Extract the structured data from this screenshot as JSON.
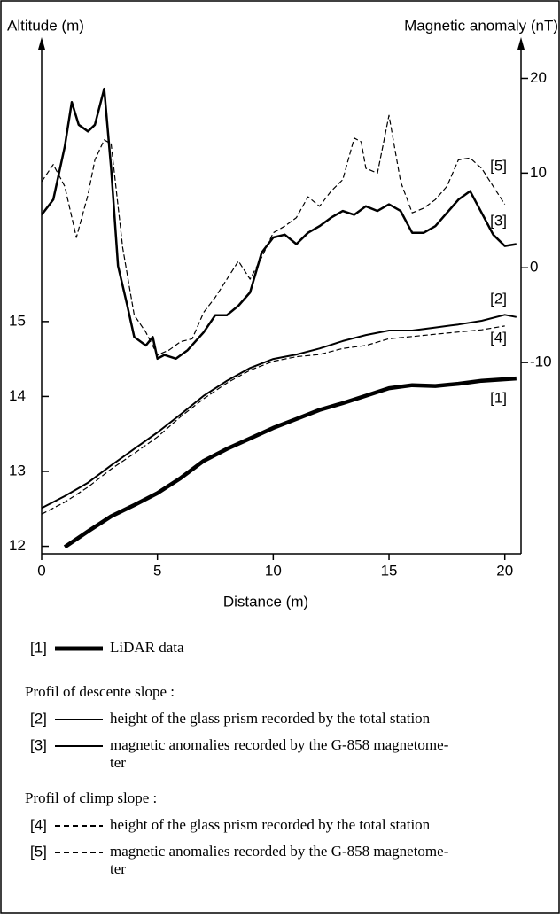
{
  "chart_data": {
    "type": "line",
    "ylabel": "Altitude (m)",
    "y2label": "Magnetic anomaly (nT)",
    "xlabel": "Distance (m)",
    "xlim": [
      0,
      20.7
    ],
    "xticks": [
      0,
      5,
      10,
      15,
      20
    ],
    "ylim": [
      11.9,
      18.7
    ],
    "yticks": [
      12,
      13,
      14,
      15
    ],
    "y2lim": [
      -30.2,
      23.6
    ],
    "y2ticks": [
      -10,
      0,
      10,
      20
    ],
    "series": [
      {
        "label": "[1]",
        "name": "LiDAR data",
        "color": "#000000",
        "width": 4.5,
        "dashed": false,
        "x": [
          1,
          2,
          3,
          4,
          5,
          6,
          7,
          8,
          9,
          10,
          11,
          12,
          13,
          14,
          15,
          16,
          17,
          18,
          19,
          20.5
        ],
        "values": [
          11.99,
          12.2,
          12.4,
          12.55,
          12.71,
          12.91,
          13.14,
          13.3,
          13.44,
          13.58,
          13.7,
          13.82,
          13.91,
          14.01,
          14.11,
          14.15,
          14.14,
          14.17,
          14.21,
          14.24
        ]
      },
      {
        "label": "[2]",
        "name": "height of the glass prism recorded by the total station",
        "color": "#000000",
        "width": 2,
        "dashed": false,
        "x": [
          0,
          1,
          2,
          3,
          4,
          5,
          6,
          7,
          8,
          9,
          10,
          11,
          12,
          13,
          14,
          15,
          16,
          17,
          18,
          19,
          20,
          20.5
        ],
        "values": [
          12.51,
          12.67,
          12.85,
          13.08,
          13.3,
          13.52,
          13.76,
          14.01,
          14.21,
          14.38,
          14.5,
          14.56,
          14.64,
          14.74,
          14.82,
          14.88,
          14.88,
          14.92,
          14.96,
          15.01,
          15.09,
          15.06
        ]
      },
      {
        "label": "[3]",
        "name": [
          "magnetic anomalies recorded by the G-858 magnetome-",
          "ter"
        ],
        "color": "#000000",
        "width": 2.5,
        "dashed": false,
        "axis": "y2",
        "x": [
          0,
          0.5,
          1,
          1.3,
          1.6,
          2,
          2.3,
          2.7,
          3,
          3.3,
          3.7,
          4,
          4.5,
          4.8,
          5,
          5.3,
          5.8,
          6.3,
          7,
          7.5,
          8,
          8.5,
          9,
          9.5,
          10,
          10.5,
          11,
          11.5,
          12,
          12.5,
          13,
          13.5,
          14,
          14.5,
          15,
          15.5,
          16,
          16.5,
          17,
          17.5,
          18,
          18.5,
          19,
          19.5,
          20,
          20.5
        ],
        "values": [
          5.6,
          7.2,
          12.8,
          17.5,
          15.1,
          14.4,
          15.1,
          18.9,
          10.5,
          0.2,
          -4.0,
          -7.3,
          -8.2,
          -7.3,
          -9.6,
          -9.2,
          -9.6,
          -8.7,
          -6.8,
          -5.0,
          -5.0,
          -4.0,
          -2.6,
          1.6,
          3.2,
          3.5,
          2.5,
          3.7,
          4.4,
          5.3,
          6.0,
          5.6,
          6.5,
          6.0,
          6.7,
          6.0,
          3.7,
          3.7,
          4.4,
          5.8,
          7.2,
          8.1,
          5.8,
          3.5,
          2.3,
          2.5
        ]
      },
      {
        "label": "[4]",
        "name": "height of the glass prism recorded by the total station",
        "color": "#000000",
        "width": 1.2,
        "dashed": true,
        "x": [
          0,
          1,
          2,
          3,
          4,
          5,
          6,
          7,
          8,
          9,
          10,
          11,
          12,
          13,
          14,
          15,
          16,
          17,
          18,
          19,
          20
        ],
        "values": [
          12.43,
          12.59,
          12.79,
          13.03,
          13.24,
          13.46,
          13.73,
          13.97,
          14.18,
          14.35,
          14.47,
          14.53,
          14.56,
          14.64,
          14.68,
          14.77,
          14.8,
          14.83,
          14.86,
          14.89,
          14.94
        ]
      },
      {
        "label": "[5]",
        "name": [
          "magnetic anomalies recorded by the G-858 magnetome-",
          "ter"
        ],
        "color": "#000000",
        "width": 1.2,
        "dashed": true,
        "axis": "y2",
        "x": [
          0,
          0.5,
          1,
          1.5,
          2,
          2.3,
          2.7,
          3,
          3.5,
          4,
          4.5,
          5,
          5.5,
          6,
          6.5,
          7,
          7.5,
          8,
          8.5,
          9,
          9.5,
          10,
          10.5,
          11,
          11.5,
          12,
          12.5,
          13,
          13.5,
          13.8,
          14,
          14.5,
          15,
          15.5,
          16,
          16.5,
          17,
          17.5,
          18,
          18.5,
          19,
          19.5,
          20
        ],
        "values": [
          9.1,
          10.9,
          8.6,
          3.2,
          7.7,
          11.4,
          13.5,
          13.1,
          2.1,
          -5.0,
          -6.8,
          -9.2,
          -8.7,
          -7.8,
          -7.5,
          -4.7,
          -3.1,
          -1.2,
          0.7,
          -1.2,
          1.1,
          3.7,
          4.4,
          5.3,
          7.5,
          6.5,
          8.1,
          9.3,
          13.7,
          13.3,
          10.5,
          10.0,
          16.1,
          9.1,
          5.8,
          6.3,
          7.2,
          8.6,
          11.4,
          11.6,
          10.5,
          8.6,
          6.7
        ]
      }
    ],
    "legend_groups": [
      "Profil of descente slope :",
      "Profil of climp slope :"
    ]
  }
}
